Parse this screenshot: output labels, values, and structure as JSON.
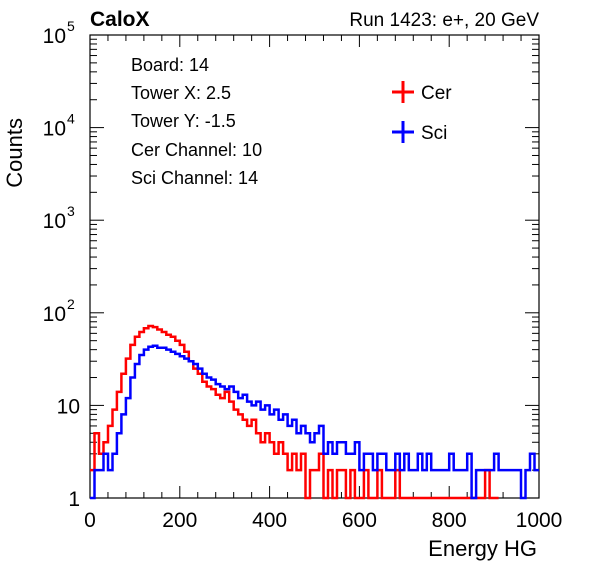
{
  "header": {
    "left": "CaloX",
    "right": "Run 1423: e+, 20 GeV"
  },
  "info_box": {
    "lines": [
      "Board: 14",
      "Tower X: 2.5",
      "Tower Y: -1.5",
      "Cer Channel: 10",
      "Sci Channel: 14"
    ]
  },
  "legend": [
    {
      "name": "Cer",
      "color": "#ff0000"
    },
    {
      "name": "Sci",
      "color": "#0000ff"
    }
  ],
  "chart_data": {
    "type": "line",
    "xlabel": "Energy HG",
    "ylabel": "Counts",
    "xlim": [
      0,
      1000
    ],
    "ylim": [
      1,
      100000
    ],
    "y_scale": "log",
    "x_ticks": [
      0,
      200,
      400,
      600,
      800,
      1000
    ],
    "y_ticks": [
      {
        "value": 1,
        "base": "1",
        "exp": ""
      },
      {
        "value": 10,
        "base": "10",
        "exp": ""
      },
      {
        "value": 100,
        "base": "10",
        "exp": "2"
      },
      {
        "value": 1000,
        "base": "10",
        "exp": "3"
      },
      {
        "value": 10000,
        "base": "10",
        "exp": "4"
      },
      {
        "value": 100000,
        "base": "10",
        "exp": "5"
      }
    ],
    "legend_position": "top-right",
    "grid": false,
    "series": [
      {
        "name": "Cer",
        "color": "#ff0000",
        "x": [
          0,
          10,
          20,
          30,
          40,
          50,
          60,
          70,
          80,
          90,
          100,
          110,
          120,
          130,
          140,
          150,
          160,
          170,
          180,
          190,
          200,
          210,
          220,
          230,
          240,
          250,
          260,
          270,
          280,
          290,
          300,
          310,
          320,
          330,
          340,
          350,
          360,
          370,
          380,
          390,
          400,
          410,
          420,
          430,
          440,
          450,
          460,
          470,
          480,
          490,
          500,
          510,
          520,
          530,
          540,
          550,
          560,
          570,
          580,
          590,
          600,
          610,
          620,
          630,
          640,
          650,
          660,
          670,
          680,
          690,
          700,
          710,
          720,
          730,
          740,
          750,
          760,
          770,
          780,
          790,
          800,
          810,
          820,
          830,
          840,
          850,
          860,
          870,
          880,
          890,
          900
        ],
        "y": [
          2,
          5,
          3,
          4,
          6,
          9,
          14,
          22,
          32,
          45,
          55,
          62,
          68,
          72,
          70,
          66,
          62,
          58,
          55,
          50,
          45,
          38,
          30,
          25,
          22,
          18,
          16,
          15,
          13,
          12,
          14,
          11,
          9,
          8,
          7,
          6,
          7,
          5,
          4,
          5,
          4,
          3,
          4,
          3,
          2,
          3,
          2,
          3,
          1,
          2,
          2,
          3,
          1,
          2,
          1,
          2,
          2,
          1,
          2,
          1,
          1,
          2,
          1,
          1,
          2,
          1,
          1,
          1,
          2,
          1,
          1,
          1,
          1,
          1,
          1,
          1,
          1,
          1,
          1,
          1,
          1,
          1,
          1,
          1,
          1,
          1,
          1,
          1,
          2,
          1,
          1
        ]
      },
      {
        "name": "Sci",
        "color": "#0000ff",
        "x": [
          0,
          10,
          20,
          30,
          40,
          50,
          60,
          70,
          80,
          90,
          100,
          110,
          120,
          130,
          140,
          150,
          160,
          170,
          180,
          190,
          200,
          210,
          220,
          230,
          240,
          250,
          260,
          270,
          280,
          290,
          300,
          310,
          320,
          330,
          340,
          350,
          360,
          370,
          380,
          390,
          400,
          410,
          420,
          430,
          440,
          450,
          460,
          470,
          480,
          490,
          500,
          510,
          520,
          530,
          540,
          550,
          560,
          570,
          580,
          590,
          600,
          610,
          620,
          630,
          640,
          650,
          660,
          670,
          680,
          690,
          700,
          710,
          720,
          730,
          740,
          750,
          760,
          770,
          780,
          790,
          800,
          810,
          820,
          830,
          840,
          850,
          860,
          870,
          880,
          890,
          900,
          910,
          920,
          930,
          940,
          950,
          960,
          970,
          980,
          990
        ],
        "y": [
          1,
          2,
          2,
          3,
          2,
          3,
          5,
          8,
          12,
          20,
          28,
          35,
          40,
          43,
          44,
          42,
          42,
          40,
          38,
          36,
          34,
          32,
          30,
          28,
          25,
          22,
          20,
          19,
          17,
          16,
          15,
          16,
          14,
          12,
          13,
          11,
          10,
          11,
          9,
          10,
          8,
          9,
          7,
          8,
          6,
          7,
          5,
          6,
          5,
          4,
          5,
          6,
          3,
          4,
          3,
          4,
          4,
          3,
          3,
          4,
          2,
          3,
          3,
          2,
          3,
          3,
          2,
          2,
          3,
          2,
          3,
          2,
          2,
          3,
          2,
          3,
          2,
          2,
          2,
          2,
          3,
          2,
          2,
          2,
          3,
          1,
          2,
          2,
          2,
          2,
          3,
          2,
          2,
          2,
          2,
          2,
          1,
          2,
          3,
          2
        ]
      }
    ]
  }
}
